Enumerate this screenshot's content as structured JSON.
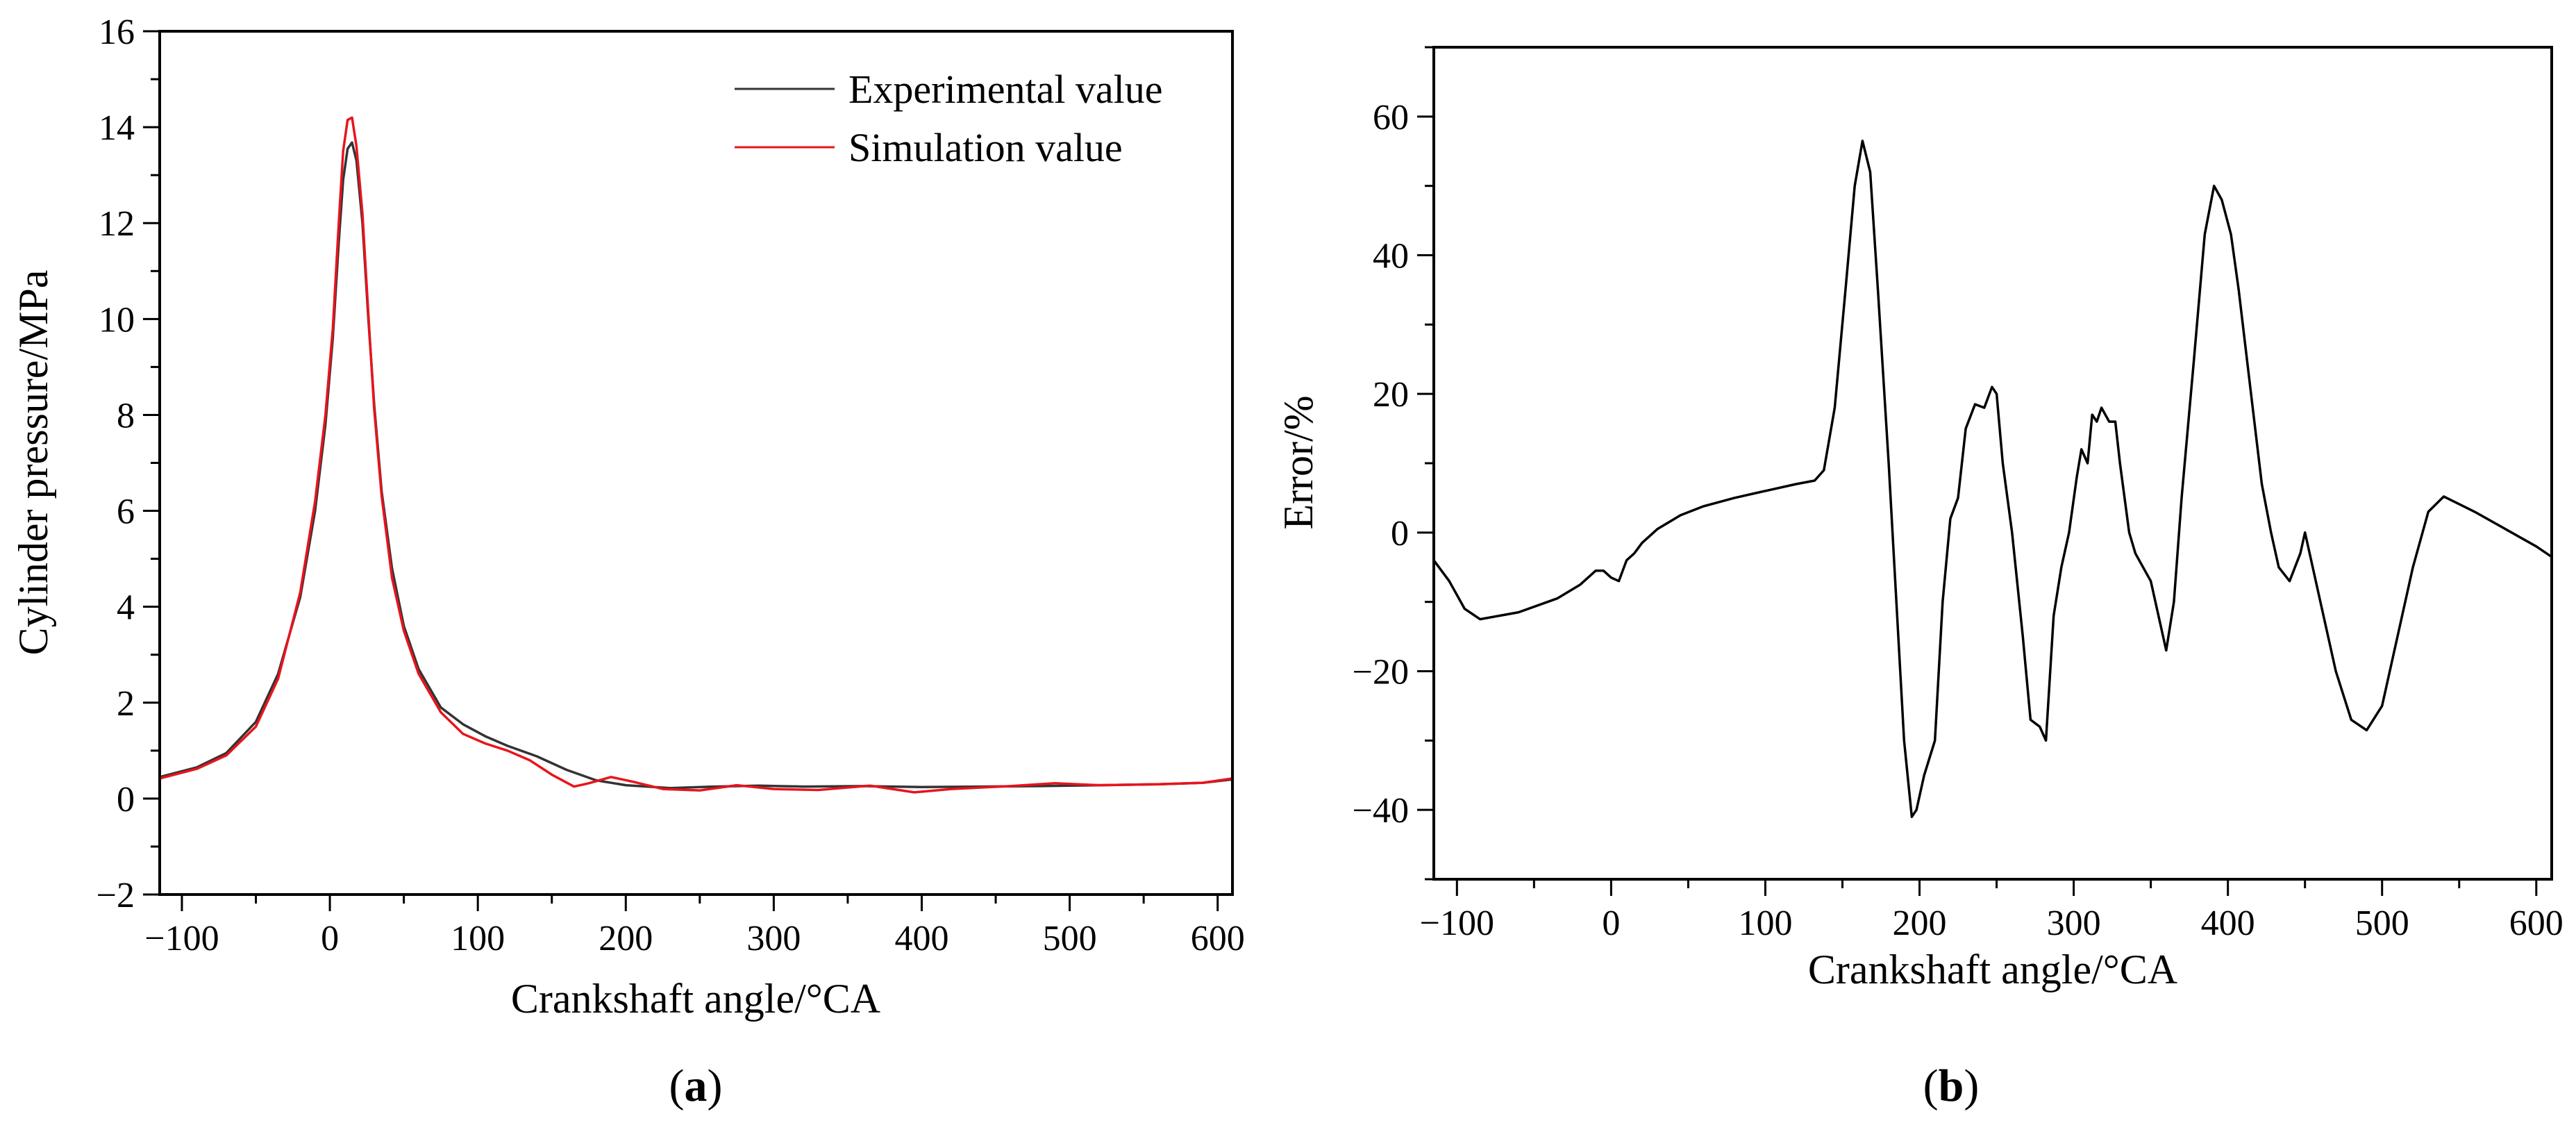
{
  "figure": {
    "caption_a": {
      "open": "(",
      "letter": "a",
      "close": ")"
    },
    "caption_b": {
      "open": "(",
      "letter": "b",
      "close": ")"
    }
  },
  "chart_data": [
    {
      "id": "a",
      "type": "line",
      "xlabel": "Crankshaft angle/°CA",
      "ylabel": "Cylinder pressure/MPa",
      "xlim": [
        -115,
        610
      ],
      "ylim": [
        -2,
        16
      ],
      "xticks": [
        -100,
        0,
        100,
        200,
        300,
        400,
        500,
        600
      ],
      "xtick_labels": [
        "−100",
        "0",
        "100",
        "200",
        "300",
        "400",
        "500",
        "600"
      ],
      "yticks": [
        -2,
        0,
        2,
        4,
        6,
        8,
        10,
        12,
        14,
        16
      ],
      "ytick_labels": [
        "−2",
        "0",
        "2",
        "4",
        "6",
        "8",
        "10",
        "12",
        "14",
        "16"
      ],
      "legend": {
        "position": "top-right"
      },
      "series": [
        {
          "name": "Experimental value",
          "color": "#333333",
          "points": [
            [
              -115,
              0.45
            ],
            [
              -90,
              0.65
            ],
            [
              -70,
              0.95
            ],
            [
              -50,
              1.6
            ],
            [
              -35,
              2.6
            ],
            [
              -20,
              4.2
            ],
            [
              -10,
              6.0
            ],
            [
              -3,
              7.8
            ],
            [
              2,
              9.6
            ],
            [
              6,
              11.6
            ],
            [
              9,
              12.9
            ],
            [
              12,
              13.55
            ],
            [
              15,
              13.68
            ],
            [
              18,
              13.3
            ],
            [
              22,
              12.0
            ],
            [
              26,
              10.0
            ],
            [
              30,
              8.2
            ],
            [
              35,
              6.4
            ],
            [
              42,
              4.8
            ],
            [
              50,
              3.6
            ],
            [
              60,
              2.7
            ],
            [
              75,
              1.9
            ],
            [
              90,
              1.55
            ],
            [
              105,
              1.3
            ],
            [
              120,
              1.1
            ],
            [
              140,
              0.88
            ],
            [
              160,
              0.6
            ],
            [
              180,
              0.38
            ],
            [
              200,
              0.28
            ],
            [
              230,
              0.22
            ],
            [
              260,
              0.25
            ],
            [
              290,
              0.27
            ],
            [
              320,
              0.25
            ],
            [
              360,
              0.26
            ],
            [
              400,
              0.24
            ],
            [
              440,
              0.25
            ],
            [
              480,
              0.26
            ],
            [
              520,
              0.28
            ],
            [
              560,
              0.3
            ],
            [
              590,
              0.33
            ],
            [
              610,
              0.4
            ]
          ]
        },
        {
          "name": "Simulation value",
          "color": "#e8141c",
          "points": [
            [
              -115,
              0.42
            ],
            [
              -90,
              0.62
            ],
            [
              -70,
              0.9
            ],
            [
              -50,
              1.5
            ],
            [
              -35,
              2.5
            ],
            [
              -20,
              4.3
            ],
            [
              -10,
              6.2
            ],
            [
              -3,
              8.0
            ],
            [
              2,
              9.8
            ],
            [
              6,
              12.0
            ],
            [
              9,
              13.5
            ],
            [
              12,
              14.15
            ],
            [
              15,
              14.2
            ],
            [
              18,
              13.6
            ],
            [
              22,
              12.2
            ],
            [
              26,
              10.1
            ],
            [
              30,
              8.1
            ],
            [
              35,
              6.3
            ],
            [
              42,
              4.6
            ],
            [
              50,
              3.5
            ],
            [
              60,
              2.6
            ],
            [
              75,
              1.8
            ],
            [
              90,
              1.35
            ],
            [
              105,
              1.15
            ],
            [
              120,
              1.0
            ],
            [
              135,
              0.8
            ],
            [
              150,
              0.5
            ],
            [
              165,
              0.25
            ],
            [
              175,
              0.32
            ],
            [
              190,
              0.45
            ],
            [
              205,
              0.35
            ],
            [
              225,
              0.2
            ],
            [
              250,
              0.17
            ],
            [
              275,
              0.28
            ],
            [
              300,
              0.2
            ],
            [
              330,
              0.18
            ],
            [
              365,
              0.27
            ],
            [
              395,
              0.13
            ],
            [
              420,
              0.2
            ],
            [
              460,
              0.26
            ],
            [
              490,
              0.32
            ],
            [
              520,
              0.28
            ],
            [
              560,
              0.3
            ],
            [
              590,
              0.33
            ],
            [
              610,
              0.42
            ]
          ]
        }
      ]
    },
    {
      "id": "b",
      "type": "line",
      "xlabel": "Crankshaft angle/°CA",
      "ylabel": "Error/%",
      "xlim": [
        -115,
        610
      ],
      "ylim": [
        -50,
        70
      ],
      "xticks": [
        -100,
        0,
        100,
        200,
        300,
        400,
        500,
        600
      ],
      "xtick_labels": [
        "−100",
        "0",
        "100",
        "200",
        "300",
        "400",
        "500",
        "600"
      ],
      "yticks": [
        -40,
        -20,
        0,
        20,
        40,
        60
      ],
      "ytick_labels": [
        "−40",
        "−20",
        "0",
        "20",
        "40",
        "60"
      ],
      "series": [
        {
          "name": "Error",
          "color": "#000000",
          "points": [
            [
              -115,
              -4
            ],
            [
              -105,
              -7
            ],
            [
              -95,
              -11
            ],
            [
              -85,
              -12.5
            ],
            [
              -60,
              -11.5
            ],
            [
              -35,
              -9.5
            ],
            [
              -20,
              -7.5
            ],
            [
              -10,
              -5.5
            ],
            [
              -5,
              -5.5
            ],
            [
              0,
              -6.5
            ],
            [
              5,
              -7
            ],
            [
              10,
              -4
            ],
            [
              15,
              -3
            ],
            [
              20,
              -1.5
            ],
            [
              30,
              0.5
            ],
            [
              45,
              2.5
            ],
            [
              60,
              3.8
            ],
            [
              80,
              5
            ],
            [
              100,
              6
            ],
            [
              120,
              7
            ],
            [
              132,
              7.5
            ],
            [
              138,
              9
            ],
            [
              145,
              18
            ],
            [
              152,
              35
            ],
            [
              158,
              50
            ],
            [
              163,
              56.5
            ],
            [
              168,
              52
            ],
            [
              173,
              35
            ],
            [
              180,
              10
            ],
            [
              185,
              -10
            ],
            [
              190,
              -30
            ],
            [
              195,
              -41
            ],
            [
              198,
              -40
            ],
            [
              203,
              -35
            ],
            [
              210,
              -30
            ],
            [
              215,
              -10
            ],
            [
              220,
              2
            ],
            [
              225,
              5
            ],
            [
              230,
              15
            ],
            [
              236,
              18.5
            ],
            [
              242,
              18
            ],
            [
              247,
              21
            ],
            [
              250,
              20
            ],
            [
              254,
              10
            ],
            [
              260,
              0
            ],
            [
              267,
              -15
            ],
            [
              272,
              -27
            ],
            [
              278,
              -28
            ],
            [
              282,
              -30
            ],
            [
              287,
              -12
            ],
            [
              292,
              -5
            ],
            [
              297,
              0
            ],
            [
              302,
              8
            ],
            [
              305,
              12
            ],
            [
              309,
              10
            ],
            [
              312,
              17
            ],
            [
              315,
              16
            ],
            [
              318,
              18
            ],
            [
              323,
              16
            ],
            [
              327,
              16
            ],
            [
              330,
              10
            ],
            [
              336,
              0
            ],
            [
              340,
              -3
            ],
            [
              345,
              -5
            ],
            [
              350,
              -7
            ],
            [
              355,
              -12
            ],
            [
              360,
              -17
            ],
            [
              365,
              -10
            ],
            [
              370,
              5
            ],
            [
              378,
              25
            ],
            [
              385,
              43
            ],
            [
              391,
              50
            ],
            [
              396,
              48
            ],
            [
              402,
              43
            ],
            [
              407,
              35
            ],
            [
              415,
              20
            ],
            [
              422,
              7
            ],
            [
              428,
              0
            ],
            [
              433,
              -5
            ],
            [
              440,
              -7
            ],
            [
              447,
              -3
            ],
            [
              450,
              0
            ],
            [
              455,
              -5
            ],
            [
              460,
              -10
            ],
            [
              470,
              -20
            ],
            [
              480,
              -27
            ],
            [
              490,
              -28.5
            ],
            [
              500,
              -25
            ],
            [
              510,
              -15
            ],
            [
              520,
              -5
            ],
            [
              530,
              3
            ],
            [
              540,
              5.2
            ],
            [
              560,
              3
            ],
            [
              580,
              0.5
            ],
            [
              600,
              -2
            ],
            [
              610,
              -3.5
            ]
          ]
        }
      ]
    }
  ]
}
